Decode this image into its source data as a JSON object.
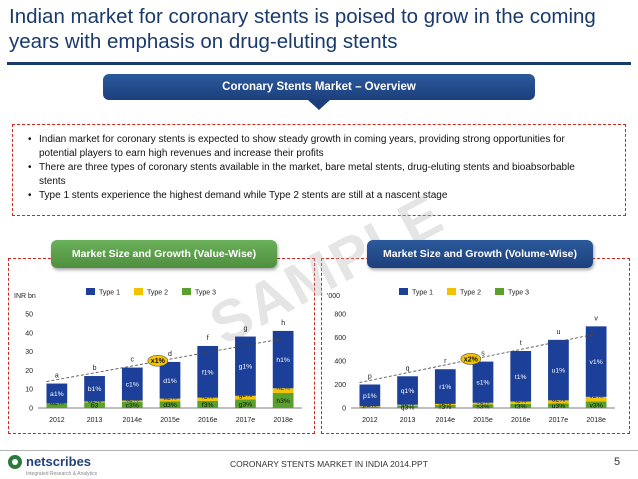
{
  "title": "Indian market for coronary stents is poised to grow in the coming years with emphasis on drug-eluting stents",
  "overview_banner": "Coronary Stents Market – Overview",
  "bullets": [
    "Indian market for coronary stents is expected to show steady growth in coming years, providing strong opportunities for potential players to earn high revenues and increase their profits",
    "There are three types of coronary stents available in the market, bare metal stents, drug-eluting stents and bioabsorbable stents",
    "Type 1 stents experience the highest demand while Type 2 stents are still at a nascent stage"
  ],
  "watermark": "SAMPLE",
  "colors": {
    "type1": "#1c3f9a",
    "type2": "#f2c300",
    "type3": "#5aa02c",
    "banner_blue": "#1c3f7c",
    "accent_red": "#d0251d"
  },
  "chart_data": [
    {
      "type": "bar",
      "stacked": true,
      "title": "Market Size and Growth (Value-Wise)",
      "ylabel": "INR bn",
      "ylim": [
        0,
        50
      ],
      "yticks": [
        0,
        10,
        20,
        30,
        40,
        50
      ],
      "categories": [
        "2012",
        "2013",
        "2014e",
        "2015e",
        "2016e",
        "2017e",
        "2018e"
      ],
      "series": [
        {
          "name": "Type 3",
          "values": [
            2.5,
            3,
            3.2,
            3.5,
            3.8,
            4.5,
            8
          ],
          "labels": [
            "",
            "b3",
            "c3%",
            "d3%",
            "f3%",
            "g3%",
            "h3%"
          ]
        },
        {
          "name": "Type 2",
          "values": [
            0,
            0.5,
            0.8,
            1.5,
            1.7,
            2,
            2.5
          ],
          "labels": [
            "a2%",
            "b2%",
            "c2%",
            "d2%",
            "f2%",
            "g2%",
            "h2%"
          ]
        },
        {
          "name": "Type 1",
          "values": [
            10.5,
            13.5,
            17.5,
            19.5,
            27.5,
            31.5,
            30.5
          ],
          "labels": [
            "a1%",
            "b1%",
            "c1%",
            "d1%",
            "f1%",
            "g1%",
            "h1%"
          ]
        }
      ],
      "total_labels": [
        "a",
        "b",
        "c",
        "d",
        "f",
        "g",
        "h"
      ],
      "cagr_label": "x1%",
      "legend": "top"
    },
    {
      "type": "bar",
      "stacked": true,
      "title": "Market Size and Growth (Volume-Wise)",
      "ylabel": "'000",
      "ylim": [
        0,
        800
      ],
      "yticks": [
        0,
        200,
        400,
        600,
        800
      ],
      "categories": [
        "2012",
        "2013",
        "2014e",
        "2015e",
        "2016e",
        "2017e",
        "2018e"
      ],
      "series": [
        {
          "name": "Type 3",
          "values": [
            10,
            20,
            25,
            30,
            35,
            40,
            55
          ],
          "labels": [
            "",
            "q3%",
            "r3%",
            "s3%",
            "t3%",
            "u3%",
            "v3%"
          ]
        },
        {
          "name": "Type 2",
          "values": [
            5,
            8,
            10,
            15,
            20,
            25,
            40
          ],
          "labels": [
            "p2%",
            "q2%",
            "r2%",
            "s2%",
            "t2%",
            "u2%",
            "v2%"
          ]
        },
        {
          "name": "Type 1",
          "values": [
            185,
            242,
            295,
            350,
            430,
            515,
            600
          ],
          "labels": [
            "p1%",
            "q1%",
            "r1%",
            "s1%",
            "t1%",
            "u1%",
            "v1%"
          ]
        }
      ],
      "total_labels": [
        "p",
        "q",
        "r",
        "s",
        "t",
        "u",
        "v"
      ],
      "cagr_label": "x2%",
      "legend": "top"
    }
  ],
  "footer": {
    "logo": "netscribes",
    "logo_tagline": "Integrated Research & Analytics",
    "text": "CORONARY STENTS MARKET IN INDIA 2014.PPT",
    "page": "5"
  }
}
